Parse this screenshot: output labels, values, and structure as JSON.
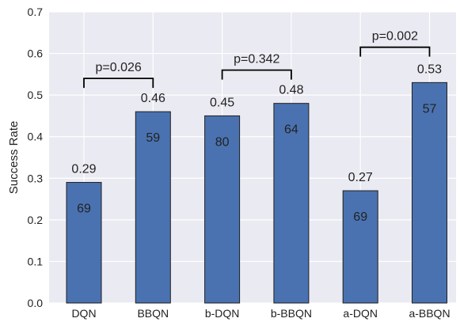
{
  "chart_data": {
    "type": "bar",
    "ylabel": "Success Rate",
    "xlabel": "",
    "title": "",
    "ylim": [
      0,
      0.7
    ],
    "yticks": [
      0.0,
      0.1,
      0.2,
      0.3,
      0.4,
      0.5,
      0.6,
      0.7
    ],
    "ytick_labels": [
      "0.0",
      "0.1",
      "0.2",
      "0.3",
      "0.4",
      "0.5",
      "0.6",
      "0.7"
    ],
    "grid": true,
    "categories": [
      "DQN",
      "BBQN",
      "b-DQN",
      "b-BBQN",
      "a-DQN",
      "a-BBQN"
    ],
    "values": [
      0.29,
      0.46,
      0.45,
      0.48,
      0.27,
      0.53
    ],
    "value_labels": [
      "0.29",
      "0.46",
      "0.45",
      "0.48",
      "0.27",
      "0.53"
    ],
    "inner_labels": [
      "69",
      "59",
      "80",
      "64",
      "69",
      "57"
    ],
    "bar_color": "#4a72b0",
    "plot_background": "#eaeaf2",
    "comparisons": [
      {
        "from": 0,
        "to": 1,
        "level": 0.54,
        "label": "p=0.026"
      },
      {
        "from": 2,
        "to": 3,
        "level": 0.56,
        "label": "p=0.342"
      },
      {
        "from": 4,
        "to": 5,
        "level": 0.615,
        "label": "p=0.002"
      }
    ]
  }
}
